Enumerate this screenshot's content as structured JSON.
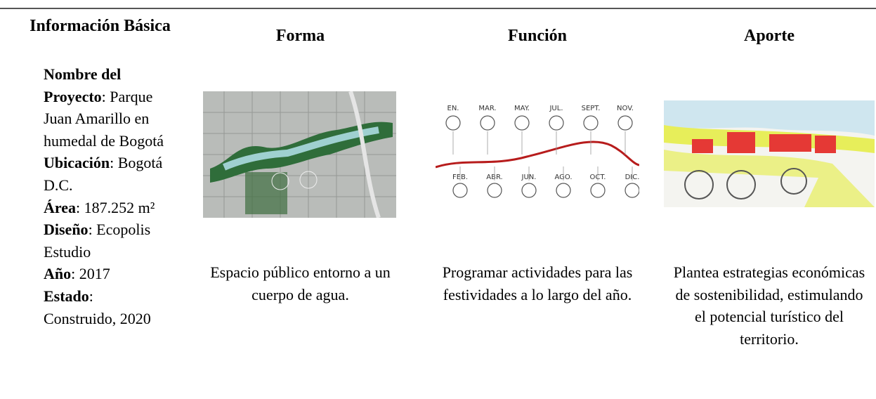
{
  "table": {
    "header": [
      "Información Básica",
      "Forma",
      "Función",
      "Aporte"
    ],
    "fields": [
      {
        "label": "Nombre del Proyecto",
        "text": ": Parque Juan Amarillo en humedal de Bogotá"
      },
      {
        "label": "Ubicación",
        "text": ": Bogotá D.C."
      },
      {
        "label": "Área",
        "text": ": 187.252 m²"
      },
      {
        "label": "Diseño",
        "text": ": Ecopolis Estudio"
      },
      {
        "label": "Año",
        "text": ": 2017"
      },
      {
        "label": "Estado",
        "text": ": Construido, 2020"
      }
    ],
    "forma": "Espacio público entorno a un cuerpo de agua.",
    "funcion": "Programar actividades para las festividades a lo largo del año.",
    "aporte": "Plantea estrategias económicas de sostenibilidad, estimulando el potencial turístico del territorio.",
    "months_top": [
      "EN.",
      "MAR.",
      "MAY.",
      "JUL.",
      "SEPT.",
      "NOV."
    ],
    "months_bottom": [
      "FEB.",
      "ABR.",
      "JUN.",
      "AGO.",
      "OCT.",
      "DIC."
    ]
  }
}
